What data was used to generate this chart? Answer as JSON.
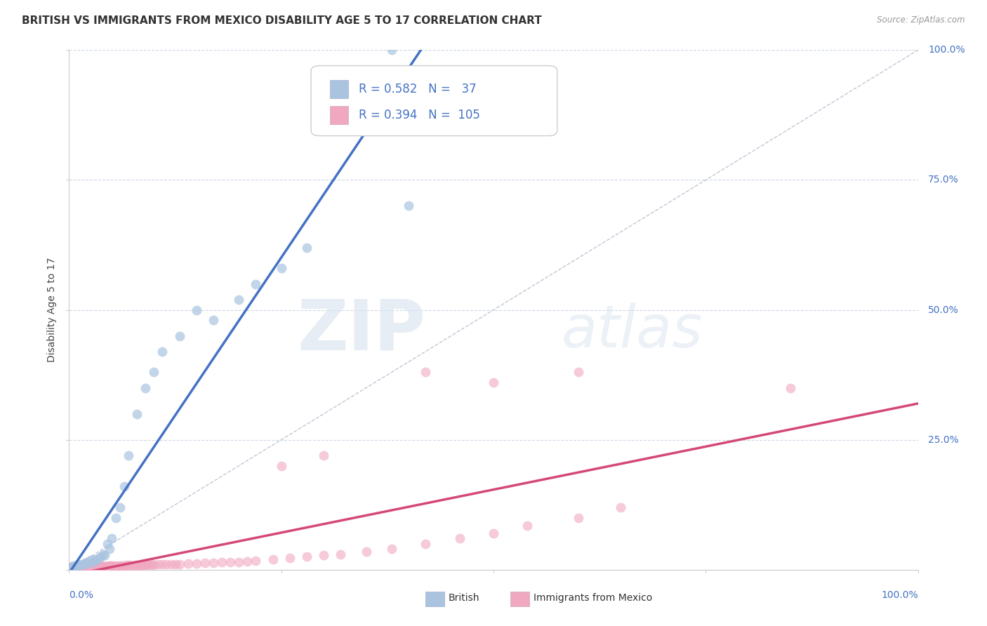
{
  "title": "BRITISH VS IMMIGRANTS FROM MEXICO DISABILITY AGE 5 TO 17 CORRELATION CHART",
  "source": "Source: ZipAtlas.com",
  "ylabel": "Disability Age 5 to 17",
  "british_R": 0.582,
  "british_N": 37,
  "mexico_R": 0.394,
  "mexico_N": 105,
  "british_color": "#aac4e0",
  "british_line_color": "#4472c4",
  "mexico_color": "#f0a8c0",
  "mexico_line_color": "#d44878",
  "diagonal_color": "#b0b8c8",
  "background_color": "#ffffff",
  "grid_color": "#c8d4e4",
  "watermark_zip": "ZIP",
  "watermark_atlas": "atlas",
  "title_fontsize": 11,
  "axis_label_fontsize": 10,
  "tick_fontsize": 10,
  "legend_fontsize": 12,
  "british_scatter_x": [
    0.003,
    0.005,
    0.008,
    0.01,
    0.012,
    0.015,
    0.018,
    0.02,
    0.022,
    0.025,
    0.028,
    0.03,
    0.032,
    0.035,
    0.038,
    0.04,
    0.042,
    0.045,
    0.048,
    0.05,
    0.055,
    0.06,
    0.065,
    0.07,
    0.08,
    0.09,
    0.1,
    0.11,
    0.13,
    0.15,
    0.17,
    0.2,
    0.22,
    0.25,
    0.28,
    0.4,
    0.38
  ],
  "british_scatter_y": [
    0.005,
    0.008,
    0.005,
    0.01,
    0.008,
    0.01,
    0.012,
    0.015,
    0.012,
    0.018,
    0.015,
    0.02,
    0.018,
    0.022,
    0.025,
    0.03,
    0.028,
    0.05,
    0.04,
    0.06,
    0.1,
    0.12,
    0.16,
    0.22,
    0.3,
    0.35,
    0.38,
    0.42,
    0.45,
    0.5,
    0.48,
    0.52,
    0.55,
    0.58,
    0.62,
    0.7,
    1.0
  ],
  "mexico_scatter_x": [
    0.002,
    0.003,
    0.004,
    0.005,
    0.006,
    0.007,
    0.008,
    0.009,
    0.01,
    0.011,
    0.012,
    0.013,
    0.014,
    0.015,
    0.016,
    0.017,
    0.018,
    0.019,
    0.02,
    0.021,
    0.022,
    0.023,
    0.024,
    0.025,
    0.026,
    0.027,
    0.028,
    0.029,
    0.03,
    0.031,
    0.032,
    0.033,
    0.034,
    0.035,
    0.036,
    0.037,
    0.038,
    0.039,
    0.04,
    0.041,
    0.042,
    0.043,
    0.044,
    0.045,
    0.046,
    0.047,
    0.048,
    0.049,
    0.05,
    0.052,
    0.054,
    0.056,
    0.058,
    0.06,
    0.062,
    0.064,
    0.066,
    0.068,
    0.07,
    0.072,
    0.075,
    0.078,
    0.08,
    0.082,
    0.085,
    0.088,
    0.09,
    0.092,
    0.095,
    0.098,
    0.1,
    0.105,
    0.11,
    0.115,
    0.12,
    0.125,
    0.13,
    0.14,
    0.15,
    0.16,
    0.17,
    0.18,
    0.19,
    0.2,
    0.21,
    0.22,
    0.24,
    0.26,
    0.28,
    0.3,
    0.32,
    0.35,
    0.38,
    0.42,
    0.46,
    0.5,
    0.54,
    0.6,
    0.65,
    0.85,
    0.42,
    0.5,
    0.6,
    0.25,
    0.3
  ],
  "mexico_scatter_y": [
    0.003,
    0.004,
    0.003,
    0.005,
    0.004,
    0.005,
    0.004,
    0.006,
    0.005,
    0.006,
    0.005,
    0.006,
    0.005,
    0.007,
    0.006,
    0.007,
    0.006,
    0.007,
    0.006,
    0.007,
    0.006,
    0.007,
    0.006,
    0.007,
    0.006,
    0.007,
    0.006,
    0.007,
    0.006,
    0.007,
    0.006,
    0.007,
    0.006,
    0.007,
    0.006,
    0.007,
    0.006,
    0.007,
    0.006,
    0.007,
    0.006,
    0.007,
    0.006,
    0.007,
    0.006,
    0.008,
    0.007,
    0.008,
    0.007,
    0.008,
    0.007,
    0.008,
    0.007,
    0.008,
    0.007,
    0.008,
    0.008,
    0.009,
    0.008,
    0.009,
    0.008,
    0.009,
    0.008,
    0.009,
    0.008,
    0.009,
    0.009,
    0.01,
    0.009,
    0.01,
    0.009,
    0.01,
    0.01,
    0.011,
    0.01,
    0.011,
    0.01,
    0.012,
    0.012,
    0.013,
    0.013,
    0.014,
    0.015,
    0.015,
    0.016,
    0.017,
    0.02,
    0.022,
    0.025,
    0.028,
    0.03,
    0.035,
    0.04,
    0.05,
    0.06,
    0.07,
    0.085,
    0.1,
    0.12,
    0.35,
    0.38,
    0.36,
    0.38,
    0.2,
    0.22
  ]
}
